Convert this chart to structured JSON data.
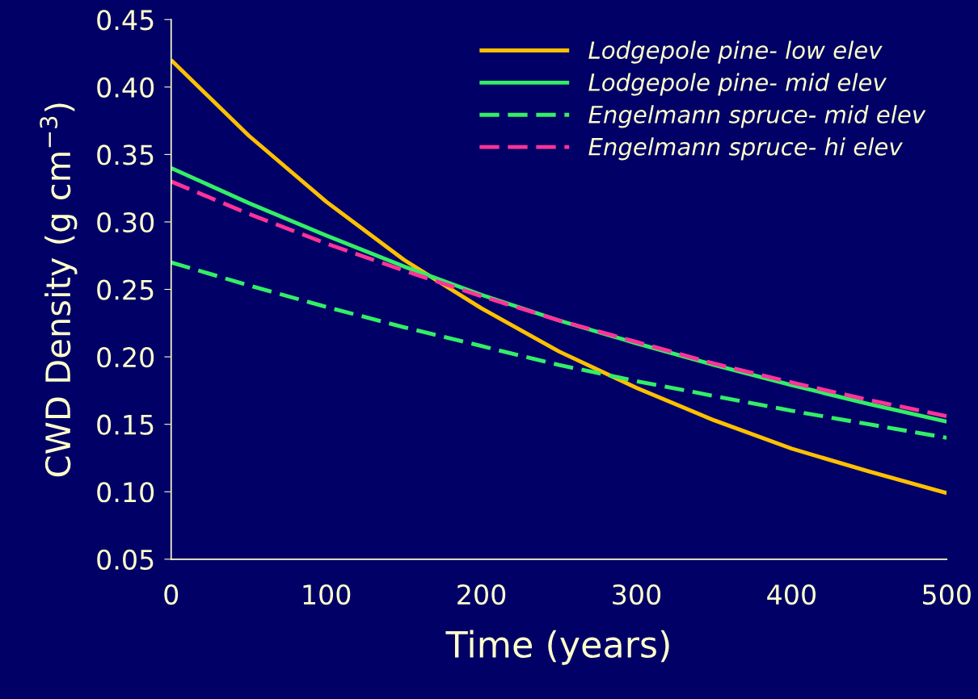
{
  "chart_data": {
    "type": "line",
    "xlabel": "Time (years)",
    "ylabel": "CWD Density (g cm$^{−3}$)",
    "x": [
      0,
      50,
      100,
      150,
      200,
      250,
      300,
      350,
      400,
      450,
      500
    ],
    "series": [
      {
        "name": "Lodgepole pine- low elev",
        "color": "#ffc000",
        "line_style": "solid",
        "values": [
          0.42,
          0.364,
          0.315,
          0.272,
          0.236,
          0.204,
          0.177,
          0.153,
          0.132,
          0.115,
          0.099
        ]
      },
      {
        "name": "Lodgepole pine- mid elev",
        "color": "#33ee66",
        "line_style": "solid",
        "values": [
          0.34,
          0.314,
          0.29,
          0.267,
          0.246,
          0.227,
          0.21,
          0.194,
          0.179,
          0.165,
          0.152
        ]
      },
      {
        "name": "Engelmann spruce- mid elev",
        "color": "#33ee66",
        "line_style": "dashed",
        "values": [
          0.27,
          0.253,
          0.237,
          0.222,
          0.208,
          0.194,
          0.182,
          0.171,
          0.16,
          0.15,
          0.14
        ]
      },
      {
        "name": "Engelmann spruce- hi elev",
        "color": "#ff3399",
        "line_style": "dashed",
        "values": [
          0.33,
          0.306,
          0.284,
          0.264,
          0.245,
          0.227,
          0.211,
          0.195,
          0.181,
          0.168,
          0.156
        ]
      }
    ],
    "xlim": [
      0,
      500
    ],
    "xticks": [
      0,
      100,
      200,
      300,
      400,
      500
    ],
    "ylim": [
      0.05,
      0.45
    ],
    "yticks": [
      {
        "value": 0.05,
        "label": "0.05"
      },
      {
        "value": 0.1,
        "label": "0.10"
      },
      {
        "value": 0.15,
        "label": "0.15"
      },
      {
        "value": 0.2,
        "label": "0.20"
      },
      {
        "value": 0.25,
        "label": "0.25"
      },
      {
        "value": 0.3,
        "label": "0.30"
      },
      {
        "value": 0.35,
        "label": "0.35"
      },
      {
        "value": 0.4,
        "label": "0.40"
      },
      {
        "value": 0.45,
        "label": "0.45"
      }
    ],
    "grid": false,
    "legend": "top right",
    "marker": "none"
  }
}
